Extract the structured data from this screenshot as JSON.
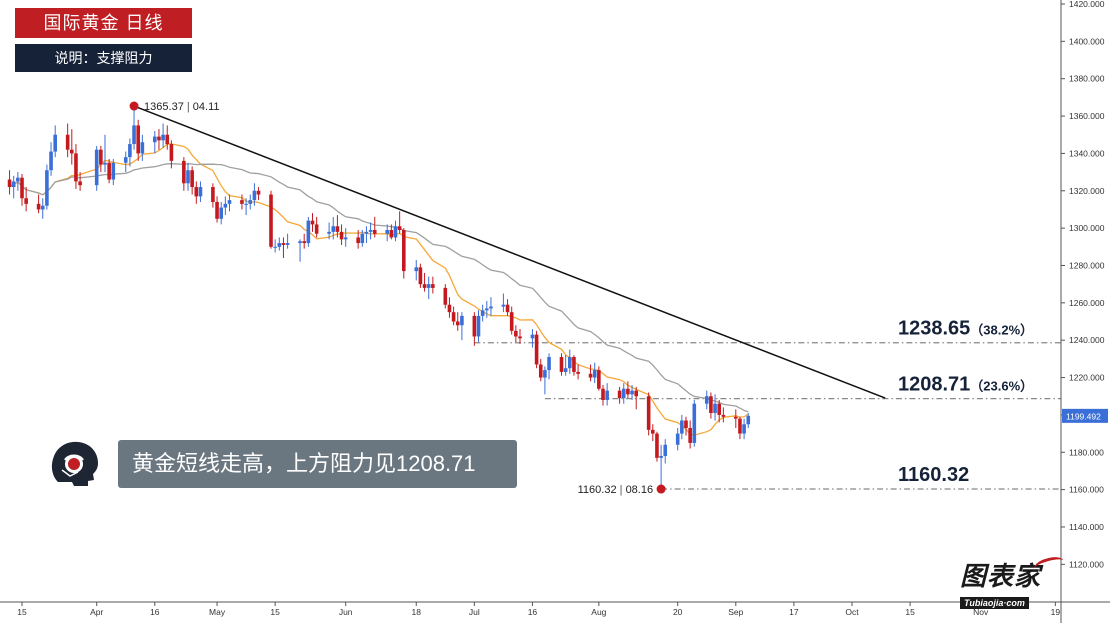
{
  "header": {
    "title": "国际黄金  日线",
    "subtitle": "说明：支撑阻力"
  },
  "callout": {
    "text": "黄金短线走高，上方阻力见1208.71"
  },
  "brand": {
    "name": "图表家",
    "domain": "Tubiaojia·com"
  },
  "colors": {
    "bull": "#3a6fd8",
    "bear": "#c41a1f",
    "ma_fast": "#f5a83a",
    "ma_slow": "#a0a0a0",
    "trendline": "#111111",
    "level_line": "#888888",
    "title_bg": "#bf1e22",
    "subtitle_bg": "#152238",
    "price_box": "#3a6fd8"
  },
  "chart_data": {
    "type": "candlestick",
    "y_axis": {
      "range": [
        1110,
        1420
      ],
      "ticks": [
        "1120.000",
        "1140.000",
        "1160.000",
        "1180.000",
        "1200.000",
        "1220.000",
        "1240.000",
        "1260.000",
        "1280.000",
        "1300.000",
        "1320.000",
        "1340.000",
        "1360.000",
        "1380.000",
        "1400.000",
        "1420.000"
      ],
      "position": "right",
      "current_price": "1199.492"
    },
    "x_axis": {
      "ticks": [
        {
          "label": "15",
          "date": "2018-03-15"
        },
        {
          "label": "Apr",
          "date": "2018-04-02"
        },
        {
          "label": "16",
          "date": "2018-04-16"
        },
        {
          "label": "May",
          "date": "2018-05-01"
        },
        {
          "label": "15",
          "date": "2018-05-15"
        },
        {
          "label": "Jun",
          "date": "2018-06-01"
        },
        {
          "label": "18",
          "date": "2018-06-18"
        },
        {
          "label": "Jul",
          "date": "2018-07-02"
        },
        {
          "label": "16",
          "date": "2018-07-16"
        },
        {
          "label": "Aug",
          "date": "2018-08-01"
        },
        {
          "label": "20",
          "date": "2018-08-20"
        },
        {
          "label": "Sep",
          "date": "2018-09-03"
        },
        {
          "label": "17",
          "date": "2018-09-17"
        },
        {
          "label": "Oct",
          "date": "2018-10-01"
        },
        {
          "label": "15",
          "date": "2018-10-15"
        },
        {
          "label": "Nov",
          "date": "2018-11-01"
        },
        {
          "label": "19",
          "date": "2018-11-19"
        }
      ]
    },
    "grid": false,
    "candles": [
      [
        "2018-03-12",
        1326,
        1331,
        1318,
        1322
      ],
      [
        "2018-03-13",
        1322,
        1328,
        1316,
        1325
      ],
      [
        "2018-03-14",
        1325,
        1330,
        1320,
        1327
      ],
      [
        "2018-03-15",
        1327,
        1329,
        1312,
        1316
      ],
      [
        "2018-03-16",
        1316,
        1322,
        1309,
        1313
      ],
      [
        "2018-03-19",
        1313,
        1318,
        1308,
        1310
      ],
      [
        "2018-03-20",
        1310,
        1316,
        1305,
        1312
      ],
      [
        "2018-03-21",
        1312,
        1334,
        1310,
        1331
      ],
      [
        "2018-03-22",
        1331,
        1346,
        1328,
        1341
      ],
      [
        "2018-03-23",
        1341,
        1355,
        1338,
        1350
      ],
      [
        "2018-03-26",
        1350,
        1356,
        1338,
        1342
      ],
      [
        "2018-03-27",
        1342,
        1353,
        1334,
        1340
      ],
      [
        "2018-03-28",
        1340,
        1345,
        1321,
        1325
      ],
      [
        "2018-03-29",
        1325,
        1330,
        1320,
        1323
      ],
      [
        "2018-04-02",
        1323,
        1344,
        1320,
        1342
      ],
      [
        "2018-04-03",
        1342,
        1344,
        1330,
        1334
      ],
      [
        "2018-04-04",
        1334,
        1350,
        1330,
        1335
      ],
      [
        "2018-04-05",
        1335,
        1337,
        1324,
        1326
      ],
      [
        "2018-04-06",
        1326,
        1337,
        1323,
        1335
      ],
      [
        "2018-04-09",
        1335,
        1341,
        1330,
        1338
      ],
      [
        "2018-04-10",
        1338,
        1348,
        1333,
        1345
      ],
      [
        "2018-04-11",
        1345,
        1365.37,
        1342,
        1355
      ],
      [
        "2018-04-12",
        1355,
        1358,
        1336,
        1340
      ],
      [
        "2018-04-13",
        1340,
        1350,
        1336,
        1346
      ],
      [
        "2018-04-16",
        1346,
        1352,
        1340,
        1349
      ],
      [
        "2018-04-17",
        1349,
        1353,
        1342,
        1347
      ],
      [
        "2018-04-18",
        1347,
        1356,
        1343,
        1350
      ],
      [
        "2018-04-19",
        1350,
        1355,
        1342,
        1345
      ],
      [
        "2018-04-20",
        1345,
        1347,
        1332,
        1336
      ],
      [
        "2018-04-23",
        1336,
        1338,
        1320,
        1324
      ],
      [
        "2018-04-24",
        1324,
        1335,
        1320,
        1331
      ],
      [
        "2018-04-25",
        1331,
        1333,
        1318,
        1322
      ],
      [
        "2018-04-26",
        1322,
        1325,
        1313,
        1317
      ],
      [
        "2018-04-27",
        1317,
        1325,
        1314,
        1322
      ],
      [
        "2018-04-30",
        1322,
        1324,
        1311,
        1314
      ],
      [
        "2018-05-01",
        1314,
        1317,
        1303,
        1305
      ],
      [
        "2018-05-02",
        1305,
        1314,
        1302,
        1311
      ],
      [
        "2018-05-03",
        1311,
        1317,
        1307,
        1313
      ],
      [
        "2018-05-04",
        1313,
        1318,
        1309,
        1315
      ],
      [
        "2018-05-07",
        1315,
        1318,
        1310,
        1313
      ],
      [
        "2018-05-08",
        1313,
        1316,
        1307,
        1313
      ],
      [
        "2018-05-09",
        1313,
        1318,
        1310,
        1315
      ],
      [
        "2018-05-10",
        1315,
        1324,
        1312,
        1320
      ],
      [
        "2018-05-11",
        1320,
        1322,
        1315,
        1318
      ],
      [
        "2018-05-14",
        1318,
        1320,
        1289,
        1290
      ],
      [
        "2018-05-15",
        1290,
        1294,
        1287,
        1290
      ],
      [
        "2018-05-16",
        1290,
        1295,
        1288,
        1292
      ],
      [
        "2018-05-17",
        1292,
        1295,
        1284,
        1291
      ],
      [
        "2018-05-18",
        1291,
        1297,
        1289,
        1292
      ],
      [
        "2018-05-21",
        1292,
        1294,
        1282,
        1293
      ],
      [
        "2018-05-22",
        1293,
        1297,
        1289,
        1292
      ],
      [
        "2018-05-23",
        1292,
        1306,
        1290,
        1304
      ],
      [
        "2018-05-24",
        1304,
        1308,
        1298,
        1302
      ],
      [
        "2018-05-25",
        1302,
        1306,
        1295,
        1297
      ],
      [
        "2018-05-28",
        1297,
        1303,
        1294,
        1298
      ],
      [
        "2018-05-29",
        1298,
        1306,
        1294,
        1301
      ],
      [
        "2018-05-30",
        1301,
        1307,
        1295,
        1298
      ],
      [
        "2018-05-31",
        1298,
        1302,
        1291,
        1294
      ],
      [
        "2018-06-01",
        1294,
        1300,
        1290,
        1295
      ],
      [
        "2018-06-04",
        1295,
        1299,
        1289,
        1292
      ],
      [
        "2018-06-05",
        1292,
        1299,
        1290,
        1297
      ],
      [
        "2018-06-06",
        1297,
        1301,
        1292,
        1298
      ],
      [
        "2018-06-07",
        1298,
        1303,
        1294,
        1299
      ],
      [
        "2018-06-08",
        1299,
        1306,
        1295,
        1297
      ],
      [
        "2018-06-11",
        1297,
        1302,
        1293,
        1299
      ],
      [
        "2018-06-12",
        1299,
        1302,
        1294,
        1295
      ],
      [
        "2018-06-13",
        1295,
        1304,
        1293,
        1301
      ],
      [
        "2018-06-14",
        1301,
        1309,
        1297,
        1299
      ],
      [
        "2018-06-15",
        1299,
        1300,
        1273,
        1277
      ],
      [
        "2018-06-18",
        1277,
        1283,
        1272,
        1279
      ],
      [
        "2018-06-19",
        1279,
        1281,
        1268,
        1270
      ],
      [
        "2018-06-20",
        1270,
        1276,
        1266,
        1268
      ],
      [
        "2018-06-21",
        1268,
        1274,
        1262,
        1270
      ],
      [
        "2018-06-22",
        1270,
        1274,
        1265,
        1268
      ],
      [
        "2018-06-25",
        1268,
        1270,
        1257,
        1259
      ],
      [
        "2018-06-26",
        1259,
        1263,
        1252,
        1255
      ],
      [
        "2018-06-27",
        1255,
        1258,
        1248,
        1250
      ],
      [
        "2018-06-28",
        1250,
        1255,
        1245,
        1248
      ],
      [
        "2018-06-29",
        1248,
        1255,
        1240,
        1253
      ],
      [
        "2018-07-02",
        1253,
        1255,
        1237,
        1242
      ],
      [
        "2018-07-03",
        1242,
        1256,
        1239,
        1253
      ],
      [
        "2018-07-04",
        1253,
        1259,
        1250,
        1256
      ],
      [
        "2018-07-05",
        1256,
        1261,
        1252,
        1257
      ],
      [
        "2018-07-06",
        1257,
        1263,
        1253,
        1258
      ],
      [
        "2018-07-09",
        1258,
        1265,
        1255,
        1259
      ],
      [
        "2018-07-10",
        1259,
        1262,
        1253,
        1255
      ],
      [
        "2018-07-11",
        1255,
        1258,
        1243,
        1245
      ],
      [
        "2018-07-12",
        1245,
        1248,
        1239,
        1242
      ],
      [
        "2018-07-13",
        1242,
        1246,
        1238,
        1241
      ],
      [
        "2018-07-16",
        1241,
        1246,
        1236,
        1243
      ],
      [
        "2018-07-17",
        1243,
        1245,
        1225,
        1227
      ],
      [
        "2018-07-18",
        1227,
        1230,
        1218,
        1220
      ],
      [
        "2018-07-19",
        1220,
        1226,
        1211,
        1224
      ],
      [
        "2018-07-20",
        1224,
        1233,
        1219,
        1231
      ],
      [
        "2018-07-23",
        1231,
        1233,
        1221,
        1223
      ],
      [
        "2018-07-24",
        1223,
        1232,
        1221,
        1225
      ],
      [
        "2018-07-25",
        1225,
        1235,
        1222,
        1231
      ],
      [
        "2018-07-26",
        1231,
        1232,
        1221,
        1223
      ],
      [
        "2018-07-27",
        1223,
        1227,
        1219,
        1222
      ],
      [
        "2018-07-30",
        1222,
        1227,
        1218,
        1220
      ],
      [
        "2018-07-31",
        1220,
        1228,
        1217,
        1224
      ],
      [
        "2018-08-01",
        1224,
        1226,
        1213,
        1214
      ],
      [
        "2018-08-02",
        1214,
        1216,
        1205,
        1208
      ],
      [
        "2018-08-03",
        1208,
        1217,
        1205,
        1213
      ],
      [
        "2018-08-06",
        1213,
        1215,
        1206,
        1209
      ],
      [
        "2018-08-07",
        1209,
        1217,
        1206,
        1214
      ],
      [
        "2018-08-08",
        1214,
        1218,
        1209,
        1211
      ],
      [
        "2018-08-09",
        1211,
        1216,
        1208,
        1213
      ],
      [
        "2018-08-10",
        1213,
        1215,
        1203,
        1210
      ],
      [
        "2018-08-13",
        1210,
        1212,
        1189,
        1192
      ],
      [
        "2018-08-14",
        1192,
        1195,
        1186,
        1190
      ],
      [
        "2018-08-15",
        1190,
        1191,
        1175,
        1177
      ],
      [
        "2018-08-16",
        1177,
        1184,
        1160.32,
        1178
      ],
      [
        "2018-08-17",
        1178,
        1187,
        1174,
        1184
      ],
      [
        "2018-08-20",
        1184,
        1193,
        1181,
        1190
      ],
      [
        "2018-08-21",
        1190,
        1200,
        1187,
        1197
      ],
      [
        "2018-08-22",
        1197,
        1199,
        1189,
        1193
      ],
      [
        "2018-08-23",
        1193,
        1197,
        1182,
        1185
      ],
      [
        "2018-08-24",
        1185,
        1208,
        1183,
        1206
      ],
      [
        "2018-08-27",
        1206,
        1213,
        1203,
        1210
      ],
      [
        "2018-08-28",
        1210,
        1212,
        1198,
        1201
      ],
      [
        "2018-08-29",
        1201,
        1211,
        1197,
        1206
      ],
      [
        "2018-08-30",
        1206,
        1208,
        1196,
        1200
      ],
      [
        "2018-08-31",
        1200,
        1204,
        1196,
        1199
      ],
      [
        "2018-09-03",
        1199,
        1203,
        1193,
        1198
      ],
      [
        "2018-09-04",
        1198,
        1199,
        1187,
        1190
      ],
      [
        "2018-09-05",
        1190,
        1198,
        1187,
        1195
      ],
      [
        "2018-09-06",
        1195,
        1201,
        1193,
        1199.492
      ]
    ],
    "moving_averages": [
      {
        "color_key": "ma_fast",
        "period": 10
      },
      {
        "color_key": "ma_slow",
        "period": 30
      }
    ],
    "trendline": {
      "from": [
        "2018-04-11",
        1365.37
      ],
      "to": [
        "2018-10-09",
        1209
      ]
    },
    "levels": [
      {
        "value": 1238.65,
        "label": "1238.65",
        "pct": "（38.2%）",
        "from": "2018-07-02"
      },
      {
        "value": 1208.71,
        "label": "1208.71",
        "pct": "（23.6%）",
        "from": "2018-07-19"
      },
      {
        "value": 1160.32,
        "label": "1160.32",
        "pct": "",
        "from": "2018-08-16"
      }
    ],
    "markers": [
      {
        "date": "2018-04-11",
        "value": 1365.37,
        "price_text": "1365.37",
        "date_text": "04.11",
        "text_side": "right"
      },
      {
        "date": "2018-08-16",
        "value": 1160.32,
        "price_text": "1160.32",
        "date_text": "08.16",
        "text_side": "left"
      }
    ]
  }
}
